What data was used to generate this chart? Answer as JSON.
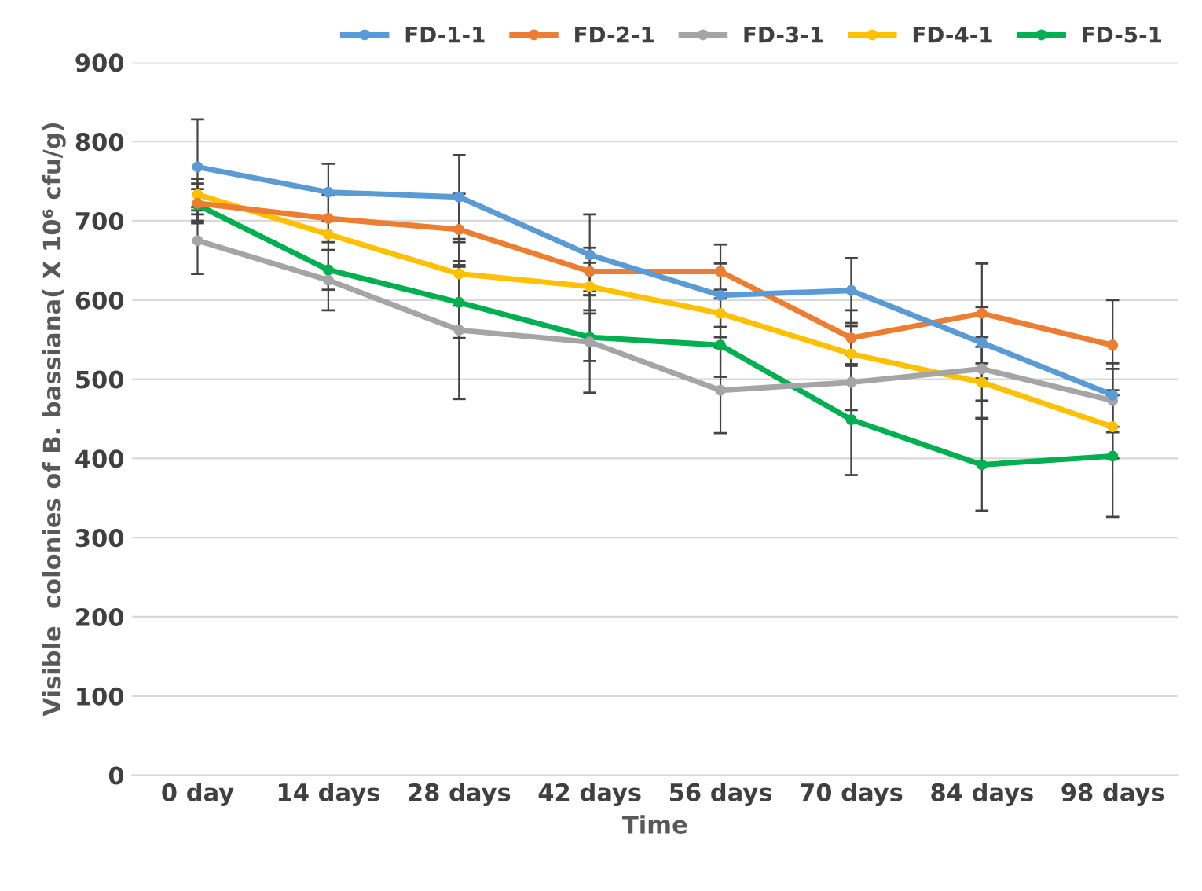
{
  "chart_data": {
    "type": "line",
    "xlabel": "Time",
    "ylabel": "Visible  colonies of B. bassiana( X 10⁶ cfu/g)",
    "categories": [
      "0 day",
      "14 days",
      "28 days",
      "42 days",
      "56 days",
      "70 days",
      "84 days",
      "98 days"
    ],
    "series": [
      {
        "name": "FD-1-1",
        "color": "#5b9bd5",
        "values": [
          768,
          736,
          730,
          657,
          606,
          612,
          546,
          480
        ],
        "errors": [
          60,
          36,
          53,
          51,
          40,
          41,
          45,
          40
        ]
      },
      {
        "name": "FD-2-1",
        "color": "#ed7d31",
        "values": [
          722,
          703,
          689,
          636,
          636,
          552,
          583,
          543
        ],
        "errors": [
          25,
          30,
          45,
          30,
          34,
          35,
          63,
          57
        ]
      },
      {
        "name": "FD-3-1",
        "color": "#a5a5a5",
        "values": [
          675,
          625,
          562,
          547,
          486,
          496,
          513,
          473
        ],
        "errors": [
          42,
          38,
          87,
          64,
          54,
          35,
          40,
          40
        ]
      },
      {
        "name": "FD-4-1",
        "color": "#ffc000",
        "values": [
          733,
          683,
          633,
          617,
          583,
          532,
          496,
          440
        ],
        "errors": [
          20,
          20,
          40,
          30,
          30,
          35,
          45,
          40
        ]
      },
      {
        "name": "FD-5-1",
        "color": "#00b050",
        "values": [
          720,
          638,
          597,
          553,
          543,
          449,
          392,
          403
        ],
        "errors": [
          20,
          25,
          45,
          30,
          40,
          70,
          58,
          77
        ]
      }
    ],
    "ylim": [
      0,
      900
    ],
    "yticks": [
      0,
      100,
      200,
      300,
      400,
      500,
      600,
      700,
      800,
      900
    ],
    "grid": "y",
    "legend": "top right",
    "marker": "circle"
  }
}
